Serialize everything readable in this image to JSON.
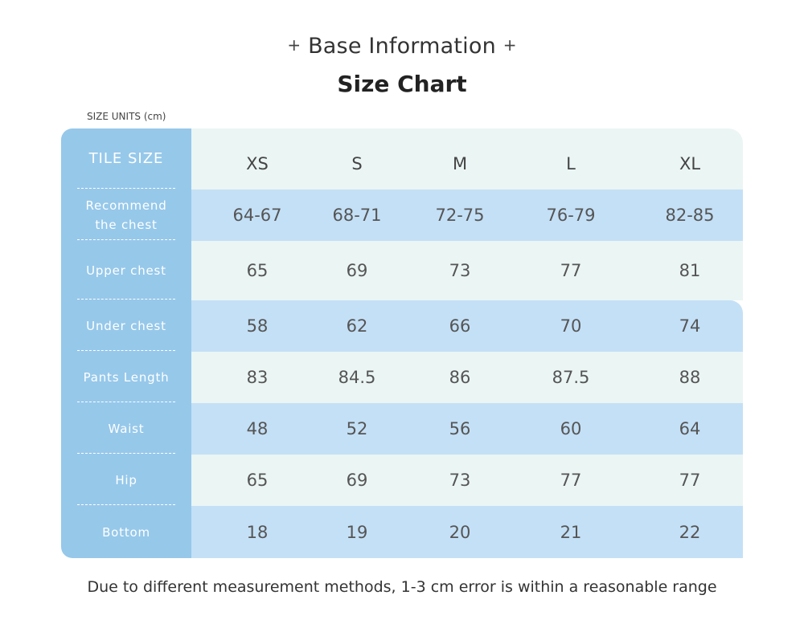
{
  "header": {
    "plus_left": "+",
    "base_information": "Base Information",
    "plus_right": "+",
    "title": "Size Chart"
  },
  "units_label": "SIZE UNITS (cm)",
  "table": {
    "corner_label": "TILE SIZE",
    "sizes": [
      "XS",
      "S",
      "M",
      "L",
      "XL"
    ],
    "rows": [
      {
        "label": "Recommend the chest",
        "values": [
          "64-67",
          "68-71",
          "72-75",
          "76-79",
          "82-85"
        ]
      },
      {
        "label": "Upper chest",
        "values": [
          "65",
          "69",
          "73",
          "77",
          "81"
        ]
      },
      {
        "label": "Under chest",
        "values": [
          "58",
          "62",
          "66",
          "70",
          "74"
        ]
      },
      {
        "label": "Pants Length",
        "values": [
          "83",
          "84.5",
          "86",
          "87.5",
          "88"
        ]
      },
      {
        "label": "Waist",
        "values": [
          "48",
          "52",
          "56",
          "60",
          "64"
        ]
      },
      {
        "label": "Hip",
        "values": [
          "65",
          "69",
          "73",
          "77",
          "77"
        ]
      },
      {
        "label": "Bottom",
        "values": [
          "18",
          "19",
          "20",
          "21",
          "22"
        ]
      }
    ]
  },
  "footnote": "Due to different measurement methods, 1-3 cm error is within a reasonable range",
  "colors": {
    "sidebar": "#96c8ea",
    "row_light": "#eaf5f4",
    "row_blue": "#c4e0f6"
  }
}
